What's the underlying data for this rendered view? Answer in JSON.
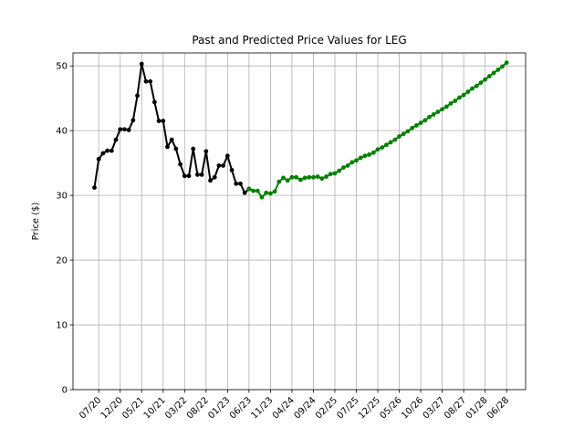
{
  "chart_data": {
    "type": "line",
    "title": "Past and Predicted Price Values for LEG",
    "xlabel": "",
    "ylabel": "Price ($)",
    "ylim": [
      0,
      52
    ],
    "yticks": [
      0,
      10,
      20,
      30,
      40,
      50
    ],
    "xtick_labels": [
      "07/20",
      "12/20",
      "05/21",
      "10/21",
      "03/22",
      "08/22",
      "01/23",
      "06/23",
      "11/23",
      "04/24",
      "09/24",
      "02/25",
      "07/25",
      "12/25",
      "05/26",
      "10/26",
      "03/27",
      "08/27",
      "01/28",
      "06/28"
    ],
    "grid": true,
    "colors": {
      "past": "#000000",
      "predicted": "#008000",
      "grid": "#b0b0b0"
    },
    "series": [
      {
        "role": "past",
        "x": [
          0,
          1,
          2,
          3,
          4,
          5,
          6,
          7,
          8,
          9,
          10,
          11,
          12,
          13,
          14,
          15,
          16,
          17,
          18,
          19,
          20,
          21,
          22,
          23,
          24,
          25,
          26,
          27,
          28,
          29,
          30,
          31,
          32,
          33,
          34,
          35,
          36
        ],
        "values": [
          31.2,
          35.6,
          36.5,
          36.9,
          36.9,
          38.6,
          40.2,
          40.2,
          40.1,
          41.6,
          45.4,
          50.3,
          47.6,
          47.6,
          44.4,
          41.5,
          41.5,
          37.5,
          38.6,
          37.2,
          34.8,
          33.0,
          33.0,
          37.2,
          33.2,
          33.2,
          36.8,
          32.3,
          32.8,
          34.6,
          34.6,
          36.1,
          33.9,
          31.8,
          31.8,
          30.4,
          31.0
        ]
      },
      {
        "role": "predicted",
        "x": [
          36,
          37,
          38,
          39,
          40,
          41,
          42,
          43,
          44,
          45,
          46,
          47,
          48,
          49,
          50,
          51,
          52,
          53,
          54,
          55,
          56,
          57,
          58,
          59,
          60,
          61,
          62,
          63,
          64,
          65,
          66,
          67,
          68,
          69,
          70,
          71,
          72,
          73,
          74,
          75,
          76,
          77,
          78,
          79,
          80,
          81,
          82,
          83,
          84,
          85,
          86,
          87,
          88,
          89,
          90,
          91,
          92,
          93,
          94,
          95,
          96
        ],
        "values": [
          31.0,
          30.7,
          30.7,
          29.7,
          30.4,
          30.3,
          30.6,
          32.1,
          32.7,
          32.3,
          32.8,
          32.8,
          32.4,
          32.7,
          32.8,
          32.8,
          32.9,
          32.6,
          32.9,
          33.3,
          33.4,
          33.8,
          34.3,
          34.6,
          35.1,
          35.4,
          35.8,
          36.1,
          36.3,
          36.6,
          37.1,
          37.4,
          37.8,
          38.2,
          38.6,
          39.1,
          39.5,
          39.9,
          40.4,
          40.8,
          41.2,
          41.6,
          42.1,
          42.5,
          42.9,
          43.3,
          43.7,
          44.2,
          44.6,
          45.1,
          45.5,
          46.0,
          46.5,
          46.9,
          47.4,
          47.9,
          48.4,
          48.9,
          49.4,
          49.9,
          50.5
        ]
      }
    ]
  }
}
